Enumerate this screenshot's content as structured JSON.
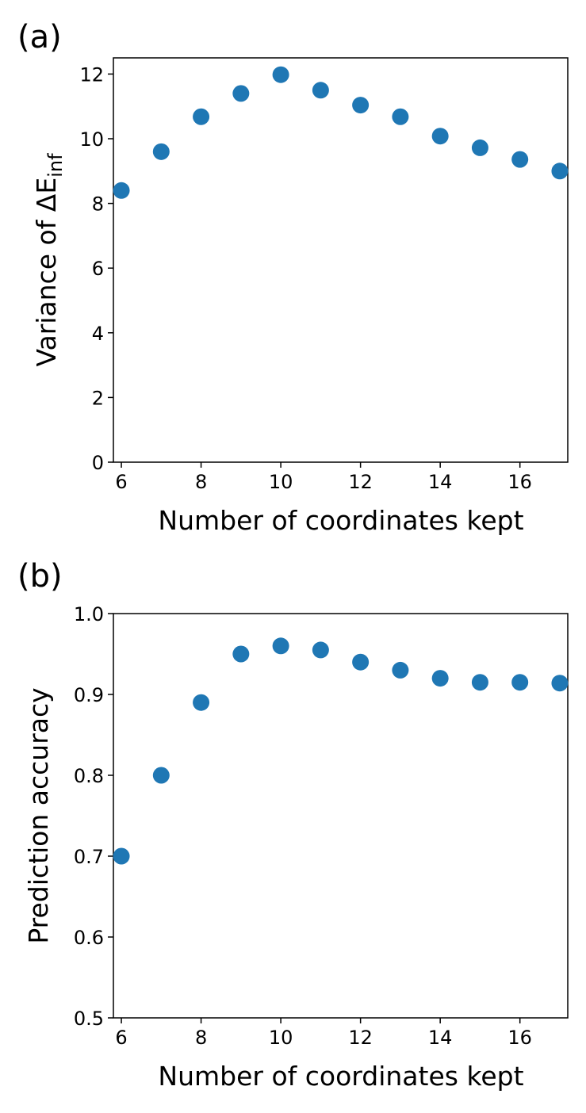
{
  "chart_data": [
    {
      "type": "scatter",
      "panel_label": "(a)",
      "xlabel": "Number of coordinates kept",
      "ylabel_text": "Variance of ΔE",
      "ylabel_subscript": "inf",
      "x": [
        6,
        7,
        8,
        9,
        10,
        11,
        12,
        13,
        14,
        15,
        16,
        17
      ],
      "y": [
        8.4,
        9.6,
        10.68,
        11.4,
        11.98,
        11.5,
        11.04,
        10.68,
        10.08,
        9.72,
        9.36,
        9.0
      ],
      "xlim": [
        5.8,
        17.2
      ],
      "ylim": [
        0,
        12.5
      ],
      "xticks": [
        "6",
        "8",
        "10",
        "12",
        "14",
        "16"
      ],
      "yticks": [
        "0",
        "2",
        "4",
        "6",
        "8",
        "10",
        "12"
      ],
      "marker_color": "#1f77b4",
      "grid": false
    },
    {
      "type": "scatter",
      "panel_label": "(b)",
      "xlabel": "Number of coordinates kept",
      "ylabel_text": "Prediction accuracy",
      "ylabel_subscript": "",
      "x": [
        6,
        7,
        8,
        9,
        10,
        11,
        12,
        13,
        14,
        15,
        16,
        17
      ],
      "y": [
        0.7,
        0.8,
        0.89,
        0.95,
        0.96,
        0.955,
        0.94,
        0.93,
        0.92,
        0.915,
        0.915,
        0.914
      ],
      "xlim": [
        5.8,
        17.2
      ],
      "ylim": [
        0.5,
        1.0
      ],
      "xticks": [
        "6",
        "8",
        "10",
        "12",
        "14",
        "16"
      ],
      "yticks": [
        "0.5",
        "0.6",
        "0.7",
        "0.8",
        "0.9",
        "1.0"
      ],
      "marker_color": "#1f77b4",
      "grid": false
    }
  ]
}
